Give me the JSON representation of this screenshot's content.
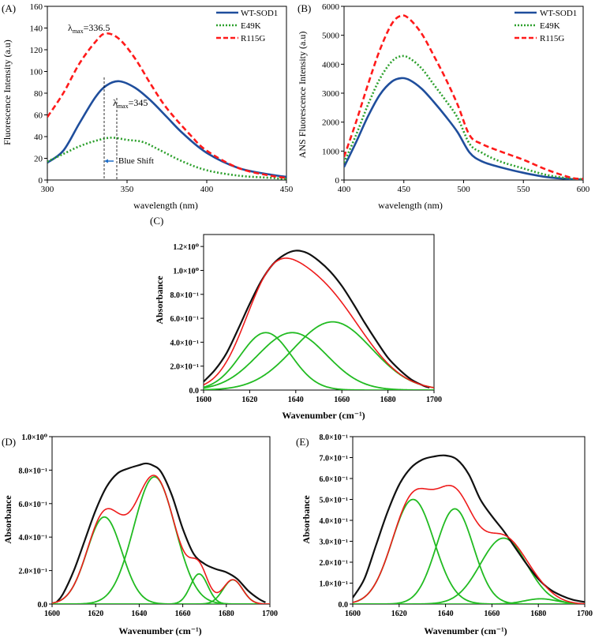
{
  "chart_data": [
    {
      "id": "A",
      "panel_label": "(A)",
      "type": "line",
      "xlabel": "wavelength (nm)",
      "ylabel": "Fluorescence Intensity (a.u)",
      "xlim": [
        300,
        450
      ],
      "ylim": [
        0,
        160
      ],
      "xticks": [
        300,
        350,
        400,
        450
      ],
      "yticks": [
        0,
        20,
        40,
        60,
        80,
        100,
        120,
        140,
        160
      ],
      "ytick_labels": [
        "0",
        "20",
        "40",
        "60",
        "80",
        "100",
        "120",
        "140",
        "160"
      ],
      "legend": "top-right",
      "series": [
        {
          "name": "WT-SOD1",
          "color": "#1f4e9c",
          "dash": "solid",
          "x": [
            300,
            310,
            320,
            330,
            337,
            345,
            355,
            365,
            375,
            385,
            400,
            420,
            440,
            450
          ],
          "y": [
            16,
            27,
            52,
            76,
            87,
            91,
            85,
            73,
            58,
            43,
            25,
            11,
            5,
            3
          ]
        },
        {
          "name": "E49K",
          "color": "#2ca02c",
          "dash": "dot",
          "x": [
            300,
            310,
            320,
            330,
            340,
            350,
            360,
            370,
            385,
            400,
            420,
            440,
            450
          ],
          "y": [
            17,
            24,
            31,
            36,
            39,
            37,
            35,
            28,
            17,
            9,
            4,
            2,
            1
          ]
        },
        {
          "name": "R115G",
          "color": "#ff1a1a",
          "dash": "dash",
          "x": [
            300,
            310,
            320,
            330,
            336.5,
            345,
            355,
            365,
            375,
            390,
            400,
            420,
            440,
            450
          ],
          "y": [
            58,
            80,
            107,
            127,
            135,
            130,
            112,
            88,
            66,
            41,
            27,
            11,
            4,
            2
          ]
        }
      ],
      "annotations": {
        "peak1": {
          "prefix": "λ",
          "sub": "max",
          "value": "=336.5",
          "x": 336.5
        },
        "peak2": {
          "prefix": "λ",
          "sub": "max",
          "value": "=345",
          "x": 345
        },
        "shift": "Blue Shift"
      }
    },
    {
      "id": "B",
      "panel_label": "(B)",
      "type": "line",
      "xlabel": "wavelength (nm)",
      "ylabel": "ANS Fluorescence Intensity (a.u)",
      "xlim": [
        400,
        600
      ],
      "ylim": [
        0,
        6000
      ],
      "xticks": [
        400,
        450,
        500,
        550,
        600
      ],
      "yticks": [
        0,
        1000,
        2000,
        3000,
        4000,
        5000,
        6000
      ],
      "ytick_labels": [
        "0",
        "1000",
        "2000",
        "3000",
        "4000",
        "5000",
        "6000"
      ],
      "legend": "top-right",
      "series": [
        {
          "name": "WT-SOD1",
          "color": "#1f4e9c",
          "dash": "solid",
          "x": [
            400,
            410,
            420,
            430,
            440,
            448,
            455,
            465,
            475,
            485,
            495,
            505,
            515,
            530,
            550,
            570,
            590,
            600
          ],
          "y": [
            450,
            1300,
            2200,
            2950,
            3400,
            3520,
            3450,
            3150,
            2700,
            2200,
            1650,
            950,
            650,
            450,
            250,
            100,
            30,
            20
          ]
        },
        {
          "name": "E49K",
          "color": "#2ca02c",
          "dash": "dot",
          "x": [
            400,
            410,
            420,
            430,
            440,
            448,
            455,
            465,
            475,
            485,
            495,
            505,
            515,
            530,
            550,
            570,
            590,
            600
          ],
          "y": [
            600,
            1550,
            2600,
            3500,
            4100,
            4280,
            4200,
            3850,
            3300,
            2750,
            2150,
            1250,
            950,
            650,
            400,
            170,
            50,
            30
          ]
        },
        {
          "name": "R115G",
          "color": "#ff1a1a",
          "dash": "dash",
          "x": [
            400,
            410,
            420,
            430,
            440,
            448,
            455,
            465,
            475,
            485,
            495,
            505,
            515,
            530,
            550,
            570,
            590,
            600
          ],
          "y": [
            800,
            2000,
            3300,
            4500,
            5400,
            5680,
            5550,
            5050,
            4300,
            3500,
            2600,
            1550,
            1250,
            1000,
            700,
            350,
            80,
            40
          ]
        }
      ]
    },
    {
      "id": "C",
      "panel_label": "(C)",
      "type": "line",
      "xlabel": "Wavenumber (cm⁻¹)",
      "ylabel": "Absorbance",
      "xlim": [
        1600,
        1700
      ],
      "ylim": [
        0,
        1.3
      ],
      "xticks": [
        1600,
        1620,
        1640,
        1660,
        1680,
        1700
      ],
      "yticks": [
        0,
        0.2,
        0.4,
        0.6,
        0.8,
        1.0,
        1.2
      ],
      "ytick_labels": [
        "0.0",
        "2.0×10⁻¹",
        "4.0×10⁻¹",
        "6.0×10⁻¹",
        "8.0×10⁻¹",
        "1.0×10⁰",
        "1.2×10⁰"
      ],
      "fit_components": [
        {
          "center": 1627,
          "amplitude": 0.48,
          "width": 11
        },
        {
          "center": 1638.5,
          "amplitude": 0.48,
          "width": 15
        },
        {
          "center": 1656,
          "amplitude": 0.57,
          "width": 17
        }
      ],
      "series": [
        {
          "name": "measured spectrum",
          "color": "#111111",
          "x": [
            1600,
            1605,
            1610,
            1615,
            1620,
            1625,
            1630,
            1635,
            1640,
            1645,
            1650,
            1655,
            1660,
            1665,
            1670,
            1675,
            1680,
            1685,
            1690,
            1695,
            1698
          ],
          "y": [
            0.07,
            0.17,
            0.31,
            0.51,
            0.72,
            0.91,
            1.05,
            1.13,
            1.165,
            1.145,
            1.08,
            0.99,
            0.87,
            0.72,
            0.56,
            0.41,
            0.27,
            0.17,
            0.09,
            0.04,
            0.02
          ]
        },
        {
          "name": "cumulative fit",
          "color": "#ee1c1c"
        }
      ]
    },
    {
      "id": "D",
      "panel_label": "(D)",
      "type": "line",
      "xlabel": "Wavenumber (cm⁻¹)",
      "ylabel": "Absorbance",
      "xlim": [
        1600,
        1700
      ],
      "ylim": [
        0,
        1.0
      ],
      "xticks": [
        1600,
        1620,
        1640,
        1660,
        1680,
        1700
      ],
      "yticks": [
        0,
        0.2,
        0.4,
        0.6,
        0.8,
        1.0
      ],
      "ytick_labels": [
        "0.0",
        "2.0×10⁻¹",
        "4.0×10⁻¹",
        "6.0×10⁻¹",
        "8.0×10⁻¹",
        "1.0×10⁰"
      ],
      "fit_components": [
        {
          "center": 1624,
          "amplitude": 0.52,
          "width": 8
        },
        {
          "center": 1647,
          "amplitude": 0.76,
          "width": 9.5
        },
        {
          "center": 1667.5,
          "amplitude": 0.18,
          "width": 4
        },
        {
          "center": 1683,
          "amplitude": 0.145,
          "width": 4.5
        }
      ],
      "series": [
        {
          "name": "measured spectrum",
          "color": "#111111",
          "x": [
            1602,
            1605,
            1610,
            1615,
            1620,
            1625,
            1630,
            1635,
            1640,
            1643,
            1646,
            1650,
            1655,
            1660,
            1665,
            1670,
            1675,
            1680,
            1685,
            1690,
            1695,
            1698
          ],
          "y": [
            0.01,
            0.06,
            0.2,
            0.38,
            0.56,
            0.7,
            0.78,
            0.81,
            0.83,
            0.84,
            0.83,
            0.79,
            0.65,
            0.45,
            0.3,
            0.24,
            0.21,
            0.19,
            0.15,
            0.08,
            0.03,
            0.01
          ]
        },
        {
          "name": "cumulative fit",
          "color": "#ee1c1c"
        }
      ]
    },
    {
      "id": "E",
      "panel_label": "(E)",
      "type": "line",
      "xlabel": "Wavenumber (cm⁻¹)",
      "ylabel": "Absorbance",
      "xlim": [
        1600,
        1700
      ],
      "ylim": [
        0,
        0.8
      ],
      "xticks": [
        1600,
        1620,
        1640,
        1660,
        1680,
        1700
      ],
      "yticks": [
        0,
        0.1,
        0.2,
        0.3,
        0.4,
        0.5,
        0.6,
        0.7,
        0.8
      ],
      "ytick_labels": [
        "0.0",
        "1.0×10⁻¹",
        "2.0×10⁻¹",
        "3.0×10⁻¹",
        "4.0×10⁻¹",
        "5.0×10⁻¹",
        "6.0×10⁻¹",
        "7.0×10⁻¹",
        "8.0×10⁻¹"
      ],
      "fit_components": [
        {
          "center": 1626,
          "amplitude": 0.5,
          "width": 9
        },
        {
          "center": 1644,
          "amplitude": 0.455,
          "width": 8
        },
        {
          "center": 1665,
          "amplitude": 0.315,
          "width": 10
        },
        {
          "center": 1681,
          "amplitude": 0.025,
          "width": 7
        }
      ],
      "series": [
        {
          "name": "measured spectrum",
          "color": "#111111",
          "x": [
            1600,
            1605,
            1610,
            1615,
            1620,
            1625,
            1630,
            1635,
            1640,
            1645,
            1650,
            1655,
            1660,
            1665,
            1670,
            1675,
            1680,
            1685,
            1690,
            1695,
            1700
          ],
          "y": [
            0.03,
            0.12,
            0.28,
            0.44,
            0.57,
            0.65,
            0.69,
            0.705,
            0.71,
            0.69,
            0.62,
            0.5,
            0.42,
            0.35,
            0.27,
            0.19,
            0.12,
            0.07,
            0.04,
            0.02,
            0.01
          ]
        },
        {
          "name": "cumulative fit",
          "color": "#ee1c1c"
        }
      ]
    }
  ]
}
